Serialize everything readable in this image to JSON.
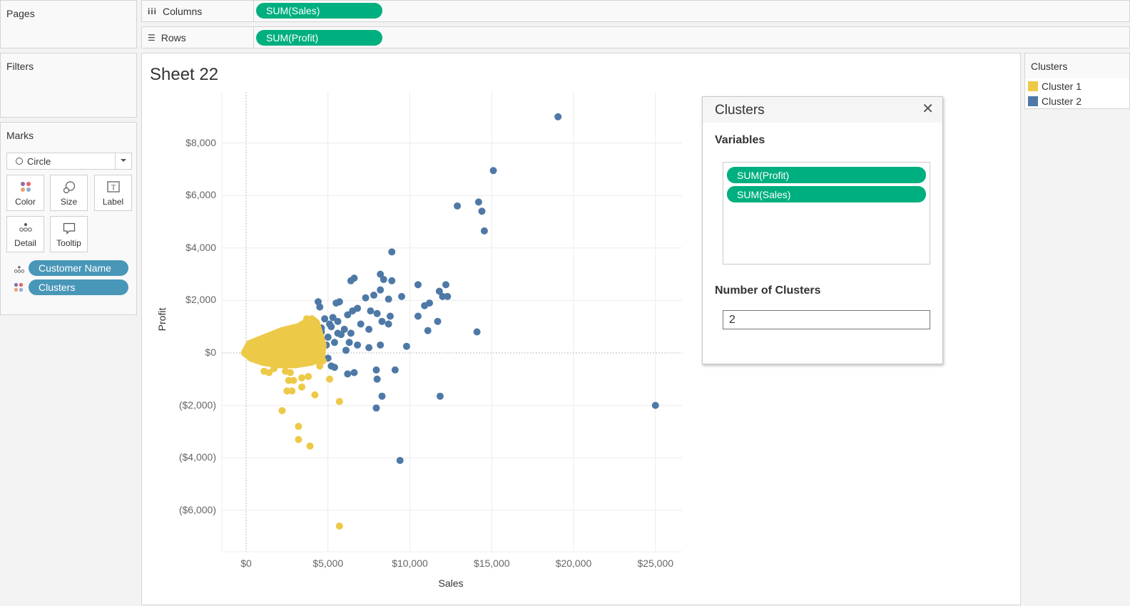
{
  "shelves": {
    "pages_label": "Pages",
    "columns_label": "Columns",
    "columns_icon": "columns-icon",
    "columns_pill": "SUM(Sales)",
    "rows_label": "Rows",
    "rows_icon": "rows-icon",
    "rows_pill": "SUM(Profit)",
    "filters_label": "Filters"
  },
  "marks": {
    "title": "Marks",
    "mark_type": "Circle",
    "buttons": [
      {
        "label": "Color",
        "icon": "color-icon"
      },
      {
        "label": "Size",
        "icon": "size-icon"
      },
      {
        "label": "Label",
        "icon": "label-icon"
      },
      {
        "label": "Detail",
        "icon": "detail-icon"
      },
      {
        "label": "Tooltip",
        "icon": "tooltip-icon"
      }
    ],
    "fields": [
      {
        "label": "Customer Name",
        "icon": "detail-icon"
      },
      {
        "label": "Clusters",
        "icon": "color-icon"
      }
    ]
  },
  "sheet": {
    "title": "Sheet 22"
  },
  "dialog": {
    "title": "Clusters",
    "variables_label": "Variables",
    "variables": [
      "SUM(Profit)",
      "SUM(Sales)"
    ],
    "num_clusters_label": "Number of Clusters",
    "num_clusters_value": "2"
  },
  "legend": {
    "title": "Clusters",
    "items": [
      {
        "label": "Cluster 1",
        "color": "#edc948"
      },
      {
        "label": "Cluster 2",
        "color": "#4e79a7"
      }
    ]
  },
  "colors": {
    "pill_green": "#00af7f",
    "pill_blue": "#4997b8",
    "cluster1": "#edc948",
    "cluster2": "#4e79a7"
  },
  "chart_data": {
    "type": "scatter",
    "title": "Sheet 22",
    "xlabel": "Sales",
    "ylabel": "Profit",
    "x_ticks": [
      "$0",
      "$5,000",
      "$10,000",
      "$15,000",
      "$20,000",
      "$25,000"
    ],
    "y_ticks": [
      "$8,000",
      "$6,000",
      "$4,000",
      "$2,000",
      "$0",
      "($2,000)",
      "($4,000)",
      "($6,000)"
    ],
    "xlim": [
      -1500,
      26500
    ],
    "ylim": [
      -7600,
      10000
    ],
    "grid": true,
    "legend": {
      "title": "Clusters",
      "position": "right",
      "entries": [
        "Cluster 1",
        "Cluster 2"
      ]
    },
    "series": [
      {
        "name": "Cluster 2",
        "color": "#4e79a7",
        "points": [
          [
            19050,
            9000
          ],
          [
            15100,
            6950
          ],
          [
            12900,
            5600
          ],
          [
            14200,
            5750
          ],
          [
            14400,
            5400
          ],
          [
            14550,
            4650
          ],
          [
            8900,
            3850
          ],
          [
            6400,
            2750
          ],
          [
            6600,
            2850
          ],
          [
            8200,
            3000
          ],
          [
            8400,
            2800
          ],
          [
            8900,
            2750
          ],
          [
            10500,
            2600
          ],
          [
            12200,
            2600
          ],
          [
            11800,
            2350
          ],
          [
            12000,
            2150
          ],
          [
            12300,
            2150
          ],
          [
            4400,
            1950
          ],
          [
            4500,
            1750
          ],
          [
            5500,
            1900
          ],
          [
            5700,
            1950
          ],
          [
            6200,
            1450
          ],
          [
            6500,
            1600
          ],
          [
            6800,
            1700
          ],
          [
            7300,
            2100
          ],
          [
            7800,
            2200
          ],
          [
            8200,
            2400
          ],
          [
            8700,
            2050
          ],
          [
            9500,
            2150
          ],
          [
            7600,
            1600
          ],
          [
            8000,
            1500
          ],
          [
            8800,
            1400
          ],
          [
            10500,
            1400
          ],
          [
            10900,
            1800
          ],
          [
            11200,
            1900
          ],
          [
            11700,
            1200
          ],
          [
            11100,
            850
          ],
          [
            14100,
            800
          ],
          [
            9800,
            250
          ],
          [
            4800,
            1300
          ],
          [
            5200,
            1000
          ],
          [
            5600,
            1200
          ],
          [
            6000,
            900
          ],
          [
            6400,
            750
          ],
          [
            7000,
            1100
          ],
          [
            7500,
            900
          ],
          [
            8300,
            1200
          ],
          [
            8700,
            1100
          ],
          [
            5000,
            600
          ],
          [
            5400,
            400
          ],
          [
            5800,
            700
          ],
          [
            6300,
            400
          ],
          [
            6800,
            300
          ],
          [
            7500,
            200
          ],
          [
            5100,
            1100
          ],
          [
            5600,
            750
          ],
          [
            4600,
            800
          ],
          [
            4900,
            300
          ],
          [
            6100,
            100
          ],
          [
            8200,
            300
          ],
          [
            4600,
            950
          ],
          [
            5300,
            1350
          ],
          [
            5000,
            -200
          ],
          [
            5200,
            -500
          ],
          [
            5400,
            -550
          ],
          [
            6200,
            -800
          ],
          [
            6600,
            -750
          ],
          [
            7950,
            -650
          ],
          [
            8000,
            -1000
          ],
          [
            9100,
            -650
          ],
          [
            8300,
            -1650
          ],
          [
            7950,
            -2100
          ],
          [
            11850,
            -1650
          ],
          [
            25000,
            -2000
          ],
          [
            9400,
            -4100
          ]
        ]
      },
      {
        "name": "Cluster 1",
        "color": "#edc948",
        "points": [
          [
            0,
            0
          ],
          [
            300,
            100
          ],
          [
            500,
            -100
          ],
          [
            800,
            200
          ],
          [
            1000,
            0
          ],
          [
            1200,
            300
          ],
          [
            1500,
            -200
          ],
          [
            1800,
            400
          ],
          [
            2000,
            100
          ],
          [
            2200,
            -300
          ],
          [
            2500,
            500
          ],
          [
            2800,
            200
          ],
          [
            3000,
            -100
          ],
          [
            3200,
            700
          ],
          [
            3500,
            400
          ],
          [
            3800,
            900
          ],
          [
            4000,
            1200
          ],
          [
            4200,
            1000
          ],
          [
            4400,
            600
          ],
          [
            4600,
            400
          ],
          [
            4500,
            100
          ],
          [
            4300,
            -200
          ],
          [
            4700,
            -300
          ],
          [
            2600,
            800
          ],
          [
            2200,
            700
          ],
          [
            1600,
            550
          ],
          [
            1200,
            500
          ],
          [
            900,
            300
          ],
          [
            3400,
            1000
          ],
          [
            3700,
            1300
          ],
          [
            4000,
            800
          ],
          [
            1100,
            -700
          ],
          [
            1400,
            -750
          ],
          [
            1700,
            -600
          ],
          [
            2400,
            -700
          ],
          [
            2700,
            -750
          ],
          [
            2600,
            -1050
          ],
          [
            2900,
            -1050
          ],
          [
            3400,
            -950
          ],
          [
            2500,
            -1450
          ],
          [
            2800,
            -1450
          ],
          [
            3400,
            -1300
          ],
          [
            3800,
            -900
          ],
          [
            4500,
            -500
          ],
          [
            5100,
            -1000
          ],
          [
            4200,
            -1600
          ],
          [
            5700,
            -1850
          ],
          [
            2200,
            -2200
          ],
          [
            3200,
            -2800
          ],
          [
            3200,
            -3300
          ],
          [
            3900,
            -3550
          ],
          [
            5700,
            -6600
          ]
        ]
      }
    ]
  }
}
